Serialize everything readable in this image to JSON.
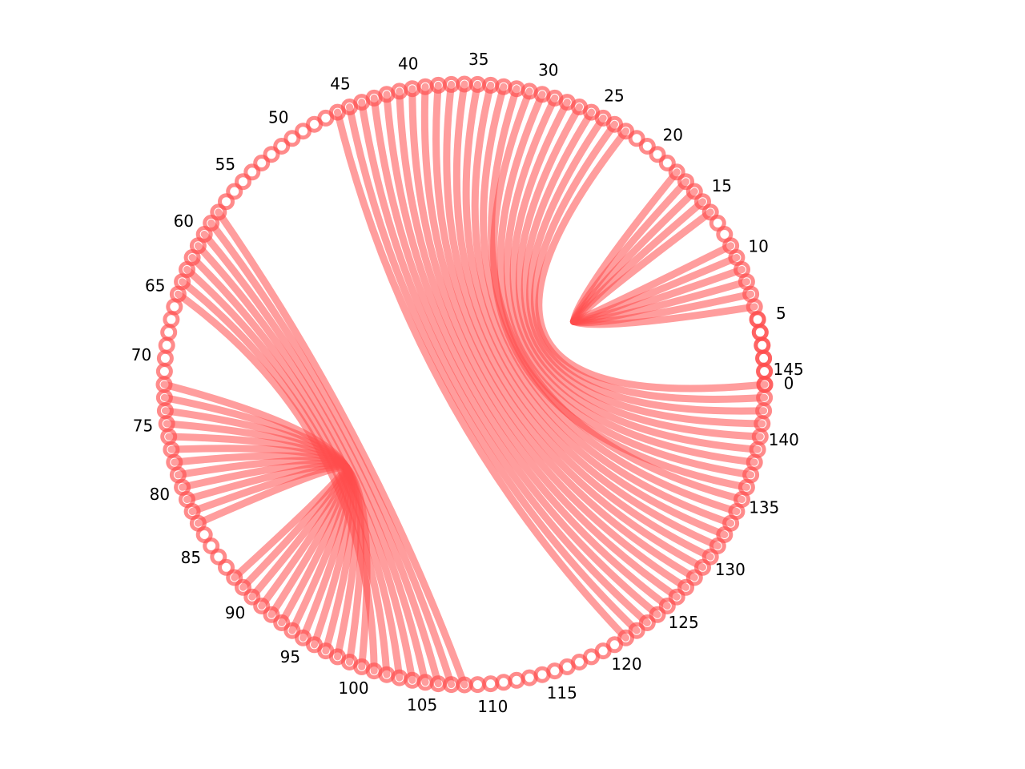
{
  "chart_data": {
    "type": "arc-diagram",
    "title": "",
    "nodes": {
      "start": 0,
      "end": 149,
      "label_every": 5
    },
    "tick_labels": [
      "0",
      "5",
      "10",
      "15",
      "20",
      "25",
      "30",
      "35",
      "40",
      "45",
      "50",
      "55",
      "60",
      "65",
      "70",
      "75",
      "80",
      "85",
      "90",
      "95",
      "100",
      "105",
      "110",
      "115",
      "120",
      "125",
      "130",
      "135",
      "140",
      "145"
    ],
    "style": {
      "color": "#ff4d4d",
      "node_alpha": 0.65,
      "edge_alpha": 0.55,
      "label_color": "#000000"
    },
    "edge_groups": [
      {
        "description": "short right-side fan",
        "from": [
          6,
          7,
          8,
          9,
          10,
          11,
          14,
          15,
          16,
          17,
          18
        ],
        "control_radius_fraction": 0.55
      },
      {
        "description": "upper-right to lower-right",
        "from": [
          23,
          24,
          25,
          26,
          27,
          28,
          29,
          30,
          31
        ],
        "to": [
          144,
          143,
          142,
          141,
          140,
          139,
          138,
          137,
          136
        ],
        "control_radius_fraction": 0.25
      },
      {
        "description": "top to bottom bundle",
        "from": [
          32,
          33,
          34,
          35,
          36,
          37,
          38,
          39,
          40,
          41,
          42,
          43,
          44,
          45,
          46
        ],
        "to": [
          135,
          134,
          133,
          132,
          131,
          130,
          129,
          128,
          127,
          126,
          125,
          124,
          123,
          122,
          121
        ],
        "control_radius_fraction": 0.2
      },
      {
        "description": "upper-left to lower-left",
        "from": [
          58,
          59,
          60,
          61,
          62,
          63,
          64,
          65
        ],
        "to": [
          108,
          107,
          106,
          105,
          104,
          103,
          102,
          101
        ],
        "control_radius_fraction": 0.35
      },
      {
        "description": "left-side fan",
        "from": [
          72,
          73,
          74,
          75,
          76,
          77,
          78,
          79,
          80,
          81,
          82,
          83,
          88,
          89,
          90,
          91,
          92,
          93,
          94,
          95,
          96,
          97,
          98,
          99,
          100
        ],
        "control_radius_fraction": 0.55
      }
    ]
  }
}
